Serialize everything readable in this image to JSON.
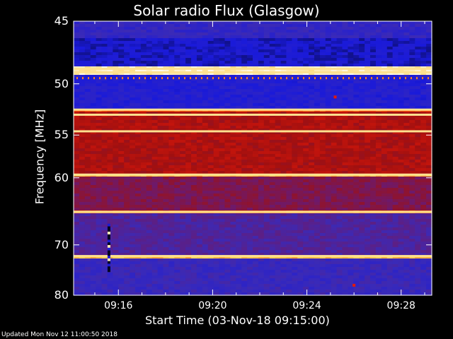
{
  "chart_data": {
    "type": "heatmap",
    "title": "Solar radio Flux (Glasgow)",
    "xlabel": "Start Time (03-Nov-18 09:15:00)",
    "ylabel": "Frequency [MHz]",
    "x_ticks": [
      "09:16",
      "09:20",
      "09:24",
      "09:28"
    ],
    "x_tick_minutes": [
      1,
      5,
      9,
      13
    ],
    "x_range_minutes": [
      -0.9,
      14.3
    ],
    "y_ticks": [
      "45",
      "50",
      "55",
      "60",
      "70",
      "80"
    ],
    "y_tick_values": [
      45,
      50,
      55,
      60,
      70,
      80
    ],
    "y_scale": "reciprocal",
    "y_range_mhz": [
      45,
      80
    ],
    "colormap": [
      "#000000",
      "#1a1ad9",
      "#3a2ab8",
      "#6a1a70",
      "#a01010",
      "#e81808",
      "#ff6a10",
      "#ffd050",
      "#ffffff"
    ],
    "bands": [
      {
        "from_mhz": 45.0,
        "to_mhz": 46.2,
        "level": 0.22
      },
      {
        "from_mhz": 46.2,
        "to_mhz": 48.5,
        "level": 0.12
      },
      {
        "from_mhz": 48.5,
        "to_mhz": 49.2,
        "level": 0.95
      },
      {
        "from_mhz": 49.2,
        "to_mhz": 52.3,
        "level": 0.16
      },
      {
        "from_mhz": 52.3,
        "to_mhz": 52.7,
        "level": 0.75
      },
      {
        "from_mhz": 52.7,
        "to_mhz": 59.4,
        "level": 0.52
      },
      {
        "from_mhz": 59.4,
        "to_mhz": 59.9,
        "level": 0.85
      },
      {
        "from_mhz": 59.9,
        "to_mhz": 64.5,
        "level": 0.42
      },
      {
        "from_mhz": 64.5,
        "to_mhz": 65.0,
        "level": 0.72
      },
      {
        "from_mhz": 65.0,
        "to_mhz": 71.7,
        "level": 0.3
      },
      {
        "from_mhz": 71.7,
        "to_mhz": 72.3,
        "level": 0.85
      },
      {
        "from_mhz": 72.3,
        "to_mhz": 80.0,
        "level": 0.24
      }
    ],
    "bright_lines_mhz": [
      48.7,
      49.0,
      52.4,
      52.9,
      54.6,
      59.6,
      64.7,
      72.0
    ],
    "noise": true,
    "features": [
      {
        "time_min": 0.6,
        "from_mhz": 66.5,
        "to_mhz": 75.0,
        "note": "dark vertical streak"
      },
      {
        "time_min": 10.2,
        "freq_mhz": 51.2,
        "note": "red dot"
      },
      {
        "time_min": 11.0,
        "freq_mhz": 77.8,
        "note": "red dot"
      }
    ]
  },
  "footer": {
    "updated": "Updated Mon Nov 12 11:00:50 2018"
  }
}
